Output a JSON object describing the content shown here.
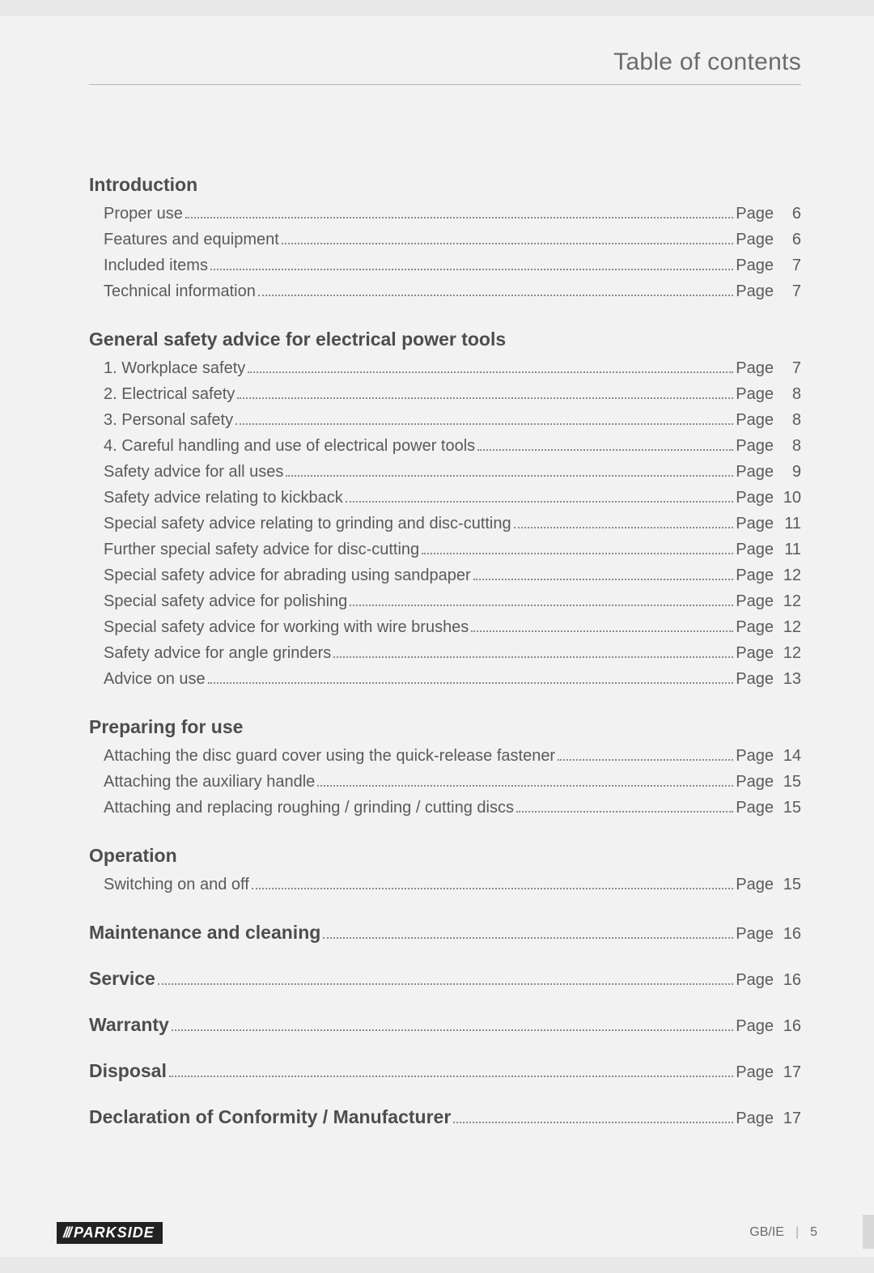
{
  "header": {
    "title": "Table of contents"
  },
  "page_word": "Page",
  "sections": [
    {
      "heading": "Introduction",
      "heading_has_page": false,
      "entries": [
        {
          "label": "Proper use",
          "page": "6"
        },
        {
          "label": "Features and equipment",
          "page": "6"
        },
        {
          "label": "Included items",
          "page": "7"
        },
        {
          "label": "Technical information",
          "page": "7"
        }
      ]
    },
    {
      "heading": "General safety advice for electrical power tools",
      "heading_has_page": false,
      "entries": [
        {
          "label": "1. Workplace safety",
          "page": "7"
        },
        {
          "label": "2. Electrical safety",
          "page": "8"
        },
        {
          "label": "3. Personal safety",
          "page": "8"
        },
        {
          "label": "4. Careful handling and use of electrical power tools",
          "page": "8"
        },
        {
          "label": "Safety advice for all uses",
          "page": "9"
        },
        {
          "label": "Safety advice relating to kickback",
          "page": "10"
        },
        {
          "label": "Special safety advice relating to grinding and disc-cutting",
          "page": "11"
        },
        {
          "label": "Further special safety advice for disc-cutting",
          "page": "11"
        },
        {
          "label": "Special safety advice for abrading using sandpaper",
          "page": "12"
        },
        {
          "label": "Special safety advice for polishing",
          "page": "12"
        },
        {
          "label": "Special safety advice for working with wire brushes",
          "page": "12"
        },
        {
          "label": "Safety advice for angle grinders",
          "page": "12"
        },
        {
          "label": "Advice on use",
          "page": "13"
        }
      ]
    },
    {
      "heading": "Preparing for use",
      "heading_has_page": false,
      "entries": [
        {
          "label": "Attaching the disc guard cover using the quick-release fastener",
          "page": "14"
        },
        {
          "label": "Attaching the auxiliary handle",
          "page": "15"
        },
        {
          "label": "Attaching and replacing roughing / grinding / cutting discs",
          "page": "15"
        }
      ]
    },
    {
      "heading": "Operation",
      "heading_has_page": false,
      "entries": [
        {
          "label": "Switching on and off",
          "page": "15"
        }
      ]
    },
    {
      "heading": "Maintenance and cleaning",
      "heading_has_page": true,
      "heading_page": "16",
      "entries": []
    },
    {
      "heading": "Service",
      "heading_has_page": true,
      "heading_page": "16",
      "entries": []
    },
    {
      "heading": "Warranty",
      "heading_has_page": true,
      "heading_page": "16",
      "entries": []
    },
    {
      "heading": "Disposal",
      "heading_has_page": true,
      "heading_page": "17",
      "entries": []
    },
    {
      "heading": "Declaration of Conformity / Manufacturer",
      "heading_has_page": true,
      "heading_page": "17",
      "entries": []
    }
  ],
  "footer": {
    "brand": "PARKSIDE",
    "region": "GB/IE",
    "page_number": "5"
  },
  "colors": {
    "page_bg": "#f2f2f2",
    "outer_bg": "#e8e8e8",
    "text": "#5a5a5a",
    "heading_text": "#4d4d4d",
    "brand_bg": "#222222",
    "brand_fg": "#ffffff",
    "rule": "#b8b8b8"
  },
  "typography": {
    "header_title_pt": 30,
    "section_head_pt": 23,
    "entry_pt": 20,
    "footer_pt": 16
  }
}
